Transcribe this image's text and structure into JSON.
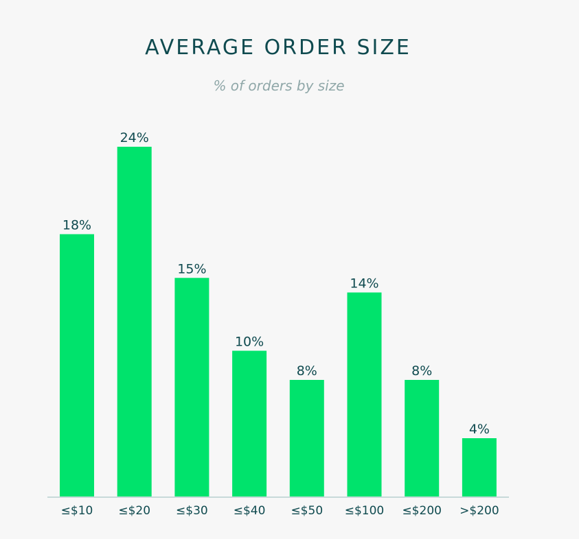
{
  "chart_data": {
    "type": "bar",
    "title": "AVERAGE ORDER SIZE",
    "subtitle": "% of orders by size",
    "categories": [
      "≤$10",
      "≤$20",
      "≤$30",
      "≤$40",
      "≤$50",
      "≤$100",
      "≤$200",
      ">$200"
    ],
    "values": [
      18,
      24,
      15,
      10,
      8,
      14,
      8,
      4
    ],
    "data_labels": [
      "18%",
      "24%",
      "15%",
      "10%",
      "8%",
      "14%",
      "8%",
      "4%"
    ],
    "value_unit": "%",
    "xlabel": "",
    "ylabel": "",
    "ylim": [
      0,
      24
    ],
    "grid": false,
    "legend": "none",
    "colors": {
      "bar": "#00e36c",
      "text": "#0f4a4f",
      "subtitle": "#8fa7a8",
      "axis": "#c7d9d9",
      "background": "#f7f7f7"
    }
  }
}
